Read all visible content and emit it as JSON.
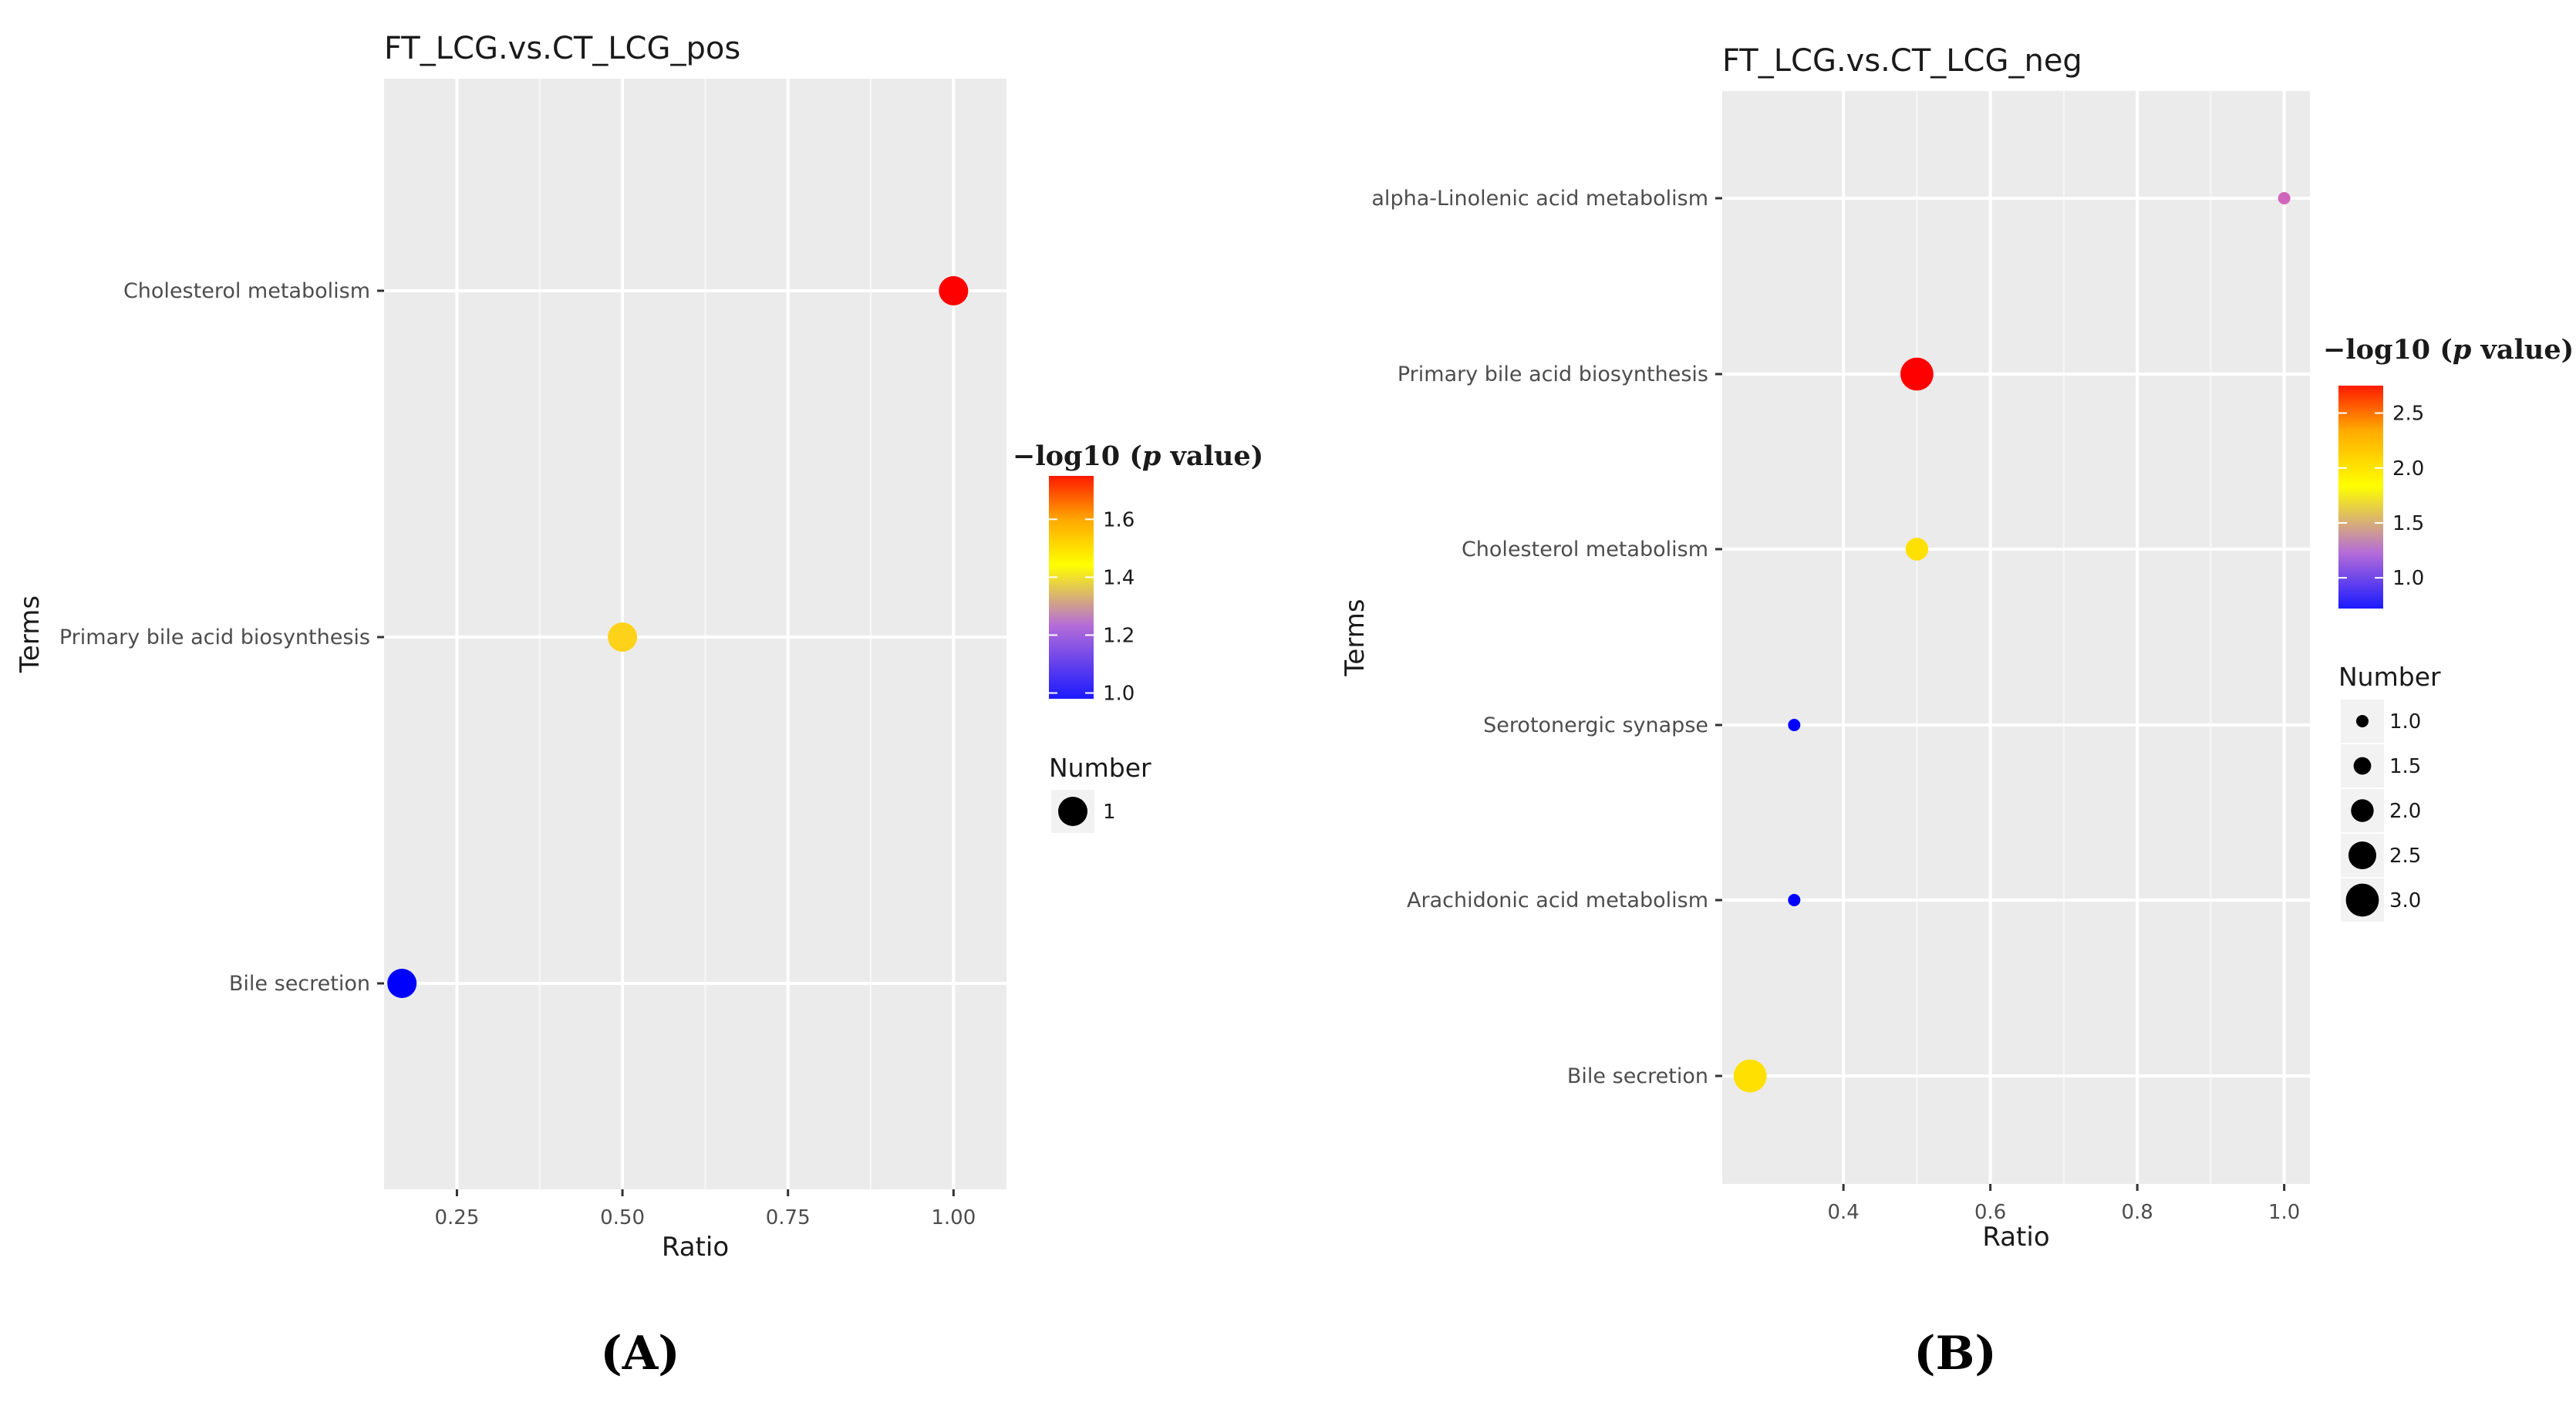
{
  "chart_data": [
    {
      "type": "scatter",
      "title": "FT_LCG.vs.CT_LCG_pos",
      "xlabel": "Ratio",
      "ylabel": "Terms",
      "xlim": [
        0.14,
        1.08
      ],
      "xticks": [
        0.25,
        0.5,
        0.75,
        1.0
      ],
      "xtick_labels": [
        "0.25",
        "0.50",
        "0.75",
        "1.00"
      ],
      "categories": [
        "Cholesterol metabolism",
        "Primary bile acid biosynthesis",
        "Bile secretion"
      ],
      "points": [
        {
          "term": "Cholesterol metabolism",
          "ratio": 1.0,
          "neglog10p": 1.75,
          "number": 1,
          "color": "#ff0000"
        },
        {
          "term": "Primary bile acid biosynthesis",
          "ratio": 0.5,
          "neglog10p": 1.43,
          "number": 1,
          "color": "#ffd21a"
        },
        {
          "term": "Bile secretion",
          "ratio": 0.167,
          "neglog10p": 0.98,
          "number": 1,
          "color": "#0000ff"
        }
      ],
      "color_legend": {
        "title_prefix": "−log10 (",
        "title_italic": "p",
        "title_suffix": " value)",
        "range": [
          0.98,
          1.75
        ],
        "ticks": [
          1.0,
          1.2,
          1.4,
          1.6
        ],
        "tick_labels": [
          "1.0",
          "1.2",
          "1.4",
          "1.6"
        ]
      },
      "size_legend": {
        "title": "Number",
        "values": [
          1
        ],
        "labels": [
          "1"
        ]
      },
      "panel_label": "A",
      "grid": true
    },
    {
      "type": "scatter",
      "title": "FT_LCG.vs.CT_LCG_neg",
      "xlabel": "Ratio",
      "ylabel": "Terms",
      "xlim": [
        0.235,
        1.035
      ],
      "xticks": [
        0.4,
        0.6,
        0.8,
        1.0
      ],
      "xtick_labels": [
        "0.4",
        "0.6",
        "0.8",
        "1.0"
      ],
      "categories": [
        "alpha-Linolenic acid metabolism",
        "Primary bile acid biosynthesis",
        "Cholesterol metabolism",
        "Serotonergic synapse",
        "Arachidonic acid metabolism",
        "Bile secretion"
      ],
      "points": [
        {
          "term": "alpha-Linolenic acid metabolism",
          "ratio": 1.0,
          "neglog10p": 1.28,
          "number": 1,
          "color": "#d066bb"
        },
        {
          "term": "Primary bile acid biosynthesis",
          "ratio": 0.5,
          "neglog10p": 2.7,
          "number": 3,
          "color": "#ff0000"
        },
        {
          "term": "Cholesterol metabolism",
          "ratio": 0.5,
          "neglog10p": 1.95,
          "number": 2,
          "color": "#ffe000"
        },
        {
          "term": "Serotonergic synapse",
          "ratio": 0.333,
          "neglog10p": 0.75,
          "number": 1,
          "color": "#0000ff"
        },
        {
          "term": "Arachidonic acid metabolism",
          "ratio": 0.333,
          "neglog10p": 0.75,
          "number": 1,
          "color": "#0000ff"
        },
        {
          "term": "Bile secretion",
          "ratio": 0.273,
          "neglog10p": 1.95,
          "number": 3,
          "color": "#ffe000"
        }
      ],
      "color_legend": {
        "title_prefix": "−log10 (",
        "title_italic": "p",
        "title_suffix": " value)",
        "range": [
          0.72,
          2.75
        ],
        "ticks": [
          1.0,
          1.5,
          2.0,
          2.5
        ],
        "tick_labels": [
          "1.0",
          "1.5",
          "2.0",
          "2.5"
        ]
      },
      "size_legend": {
        "title": "Number",
        "values": [
          1.0,
          1.5,
          2.0,
          2.5,
          3.0
        ],
        "labels": [
          "1.0",
          "1.5",
          "2.0",
          "2.5",
          "3.0"
        ]
      },
      "panel_label": "B",
      "grid": true
    }
  ]
}
